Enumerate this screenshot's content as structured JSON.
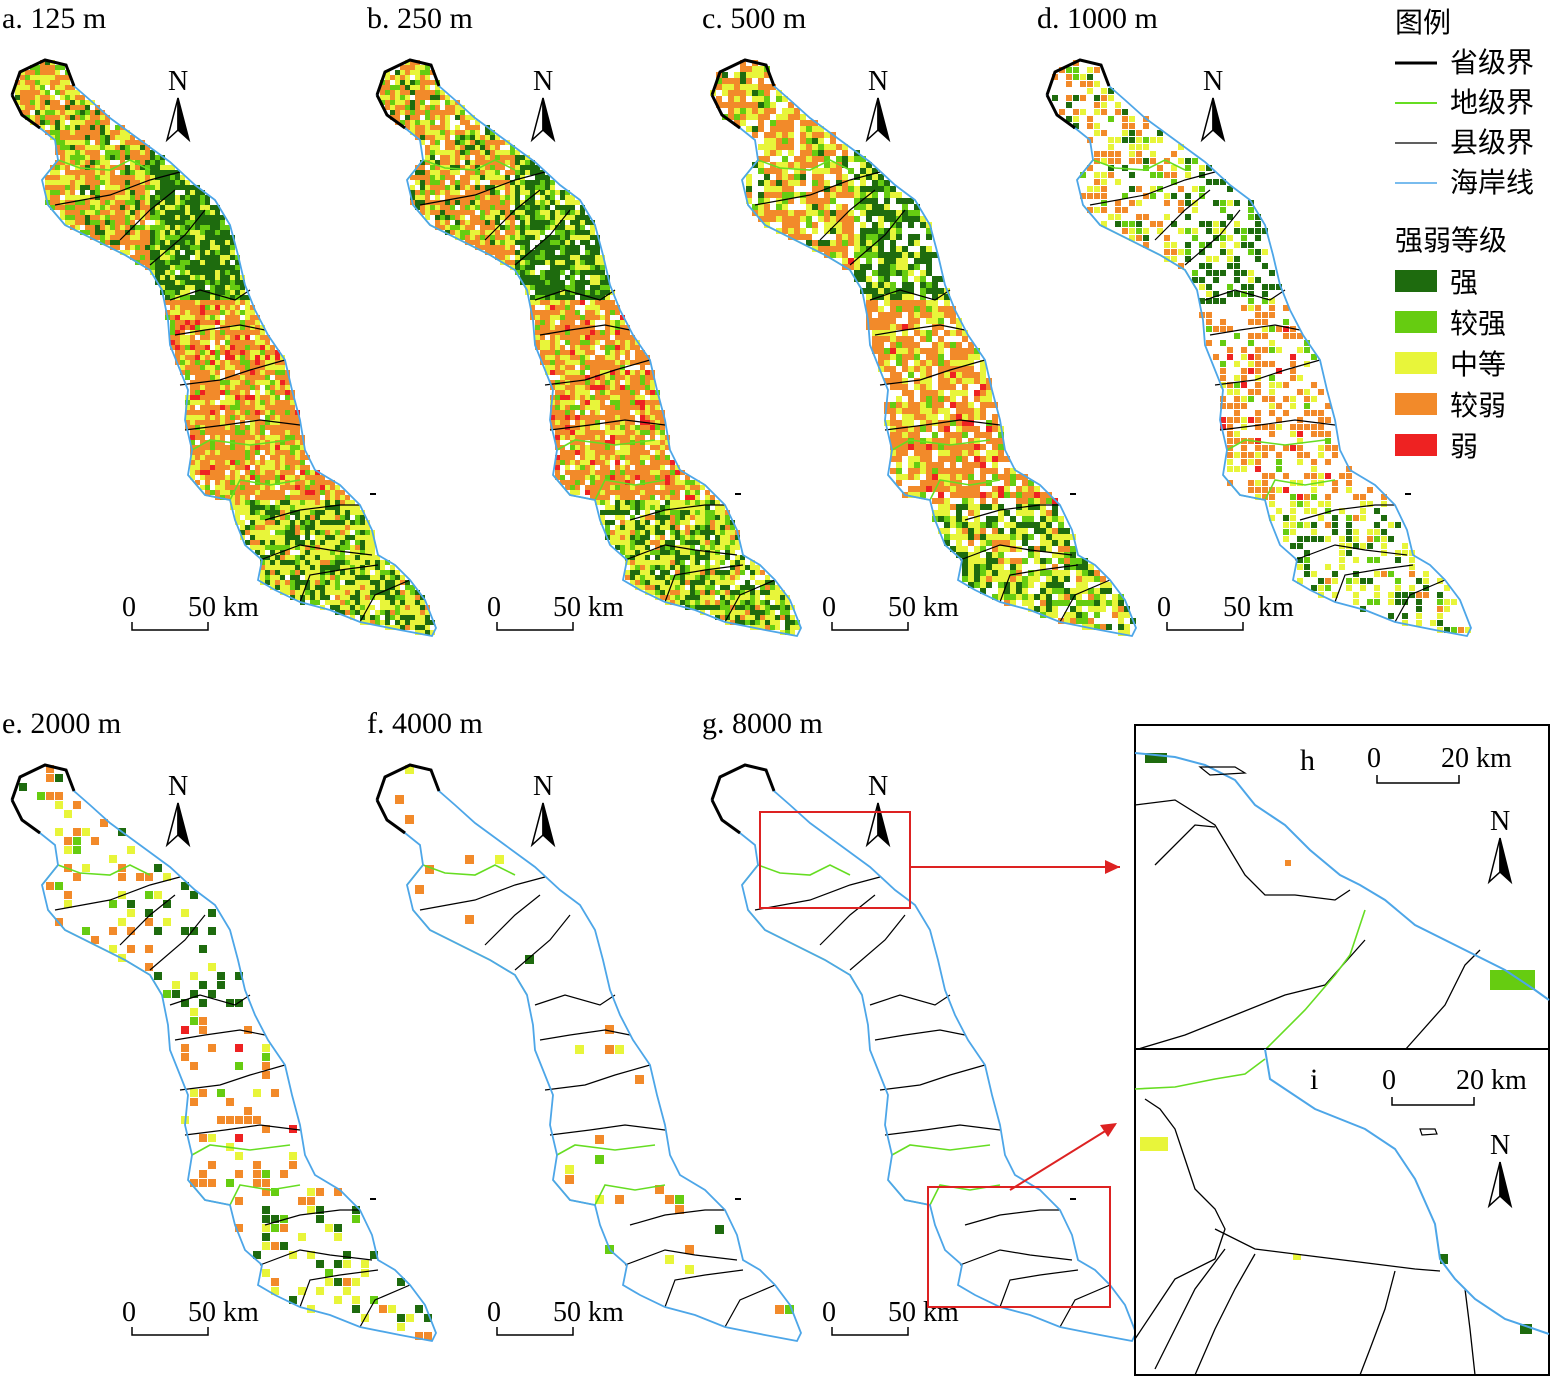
{
  "panels": [
    {
      "id": "a",
      "title": "a. 125 m",
      "grain": 0.92,
      "density": 0.95
    },
    {
      "id": "b",
      "title": "b. 250 m",
      "grain": 0.85,
      "density": 0.9
    },
    {
      "id": "c",
      "title": "c. 500 m",
      "grain": 0.75,
      "density": 0.8
    },
    {
      "id": "d",
      "title": "d. 1000 m",
      "grain": 0.45,
      "density": 0.5
    },
    {
      "id": "e",
      "title": "e. 2000 m",
      "grain": 0.25,
      "density": 0.25
    },
    {
      "id": "f",
      "title": "f. 4000 m",
      "grain": 0.1,
      "density": 0.04
    },
    {
      "id": "g",
      "title": "g. 8000 m",
      "grain": 0.0,
      "density": 0.0
    }
  ],
  "insets": [
    {
      "id": "h",
      "label": "h",
      "scale_zero": "0",
      "scale_text": "20 km"
    },
    {
      "id": "i",
      "label": "i",
      "scale_zero": "0",
      "scale_text": "20 km"
    }
  ],
  "north_label": "N",
  "scale": {
    "zero": "0",
    "text": "50 km"
  },
  "legend": {
    "title": "图例",
    "lines": [
      {
        "label": "省级界",
        "color": "#000000"
      },
      {
        "label": "地级界",
        "color": "#66dd22"
      },
      {
        "label": "县级界",
        "color": "#000000"
      },
      {
        "label": "海岸线",
        "color": "#4da6e8"
      }
    ],
    "class_title": "强弱等级",
    "classes": [
      {
        "label": "强",
        "color": "#1e6b0e"
      },
      {
        "label": "较强",
        "color": "#66cc11"
      },
      {
        "label": "中等",
        "color": "#e8f53a"
      },
      {
        "label": "较弱",
        "color": "#f28a2a"
      },
      {
        "label": "弱",
        "color": "#ee2222"
      }
    ]
  }
}
